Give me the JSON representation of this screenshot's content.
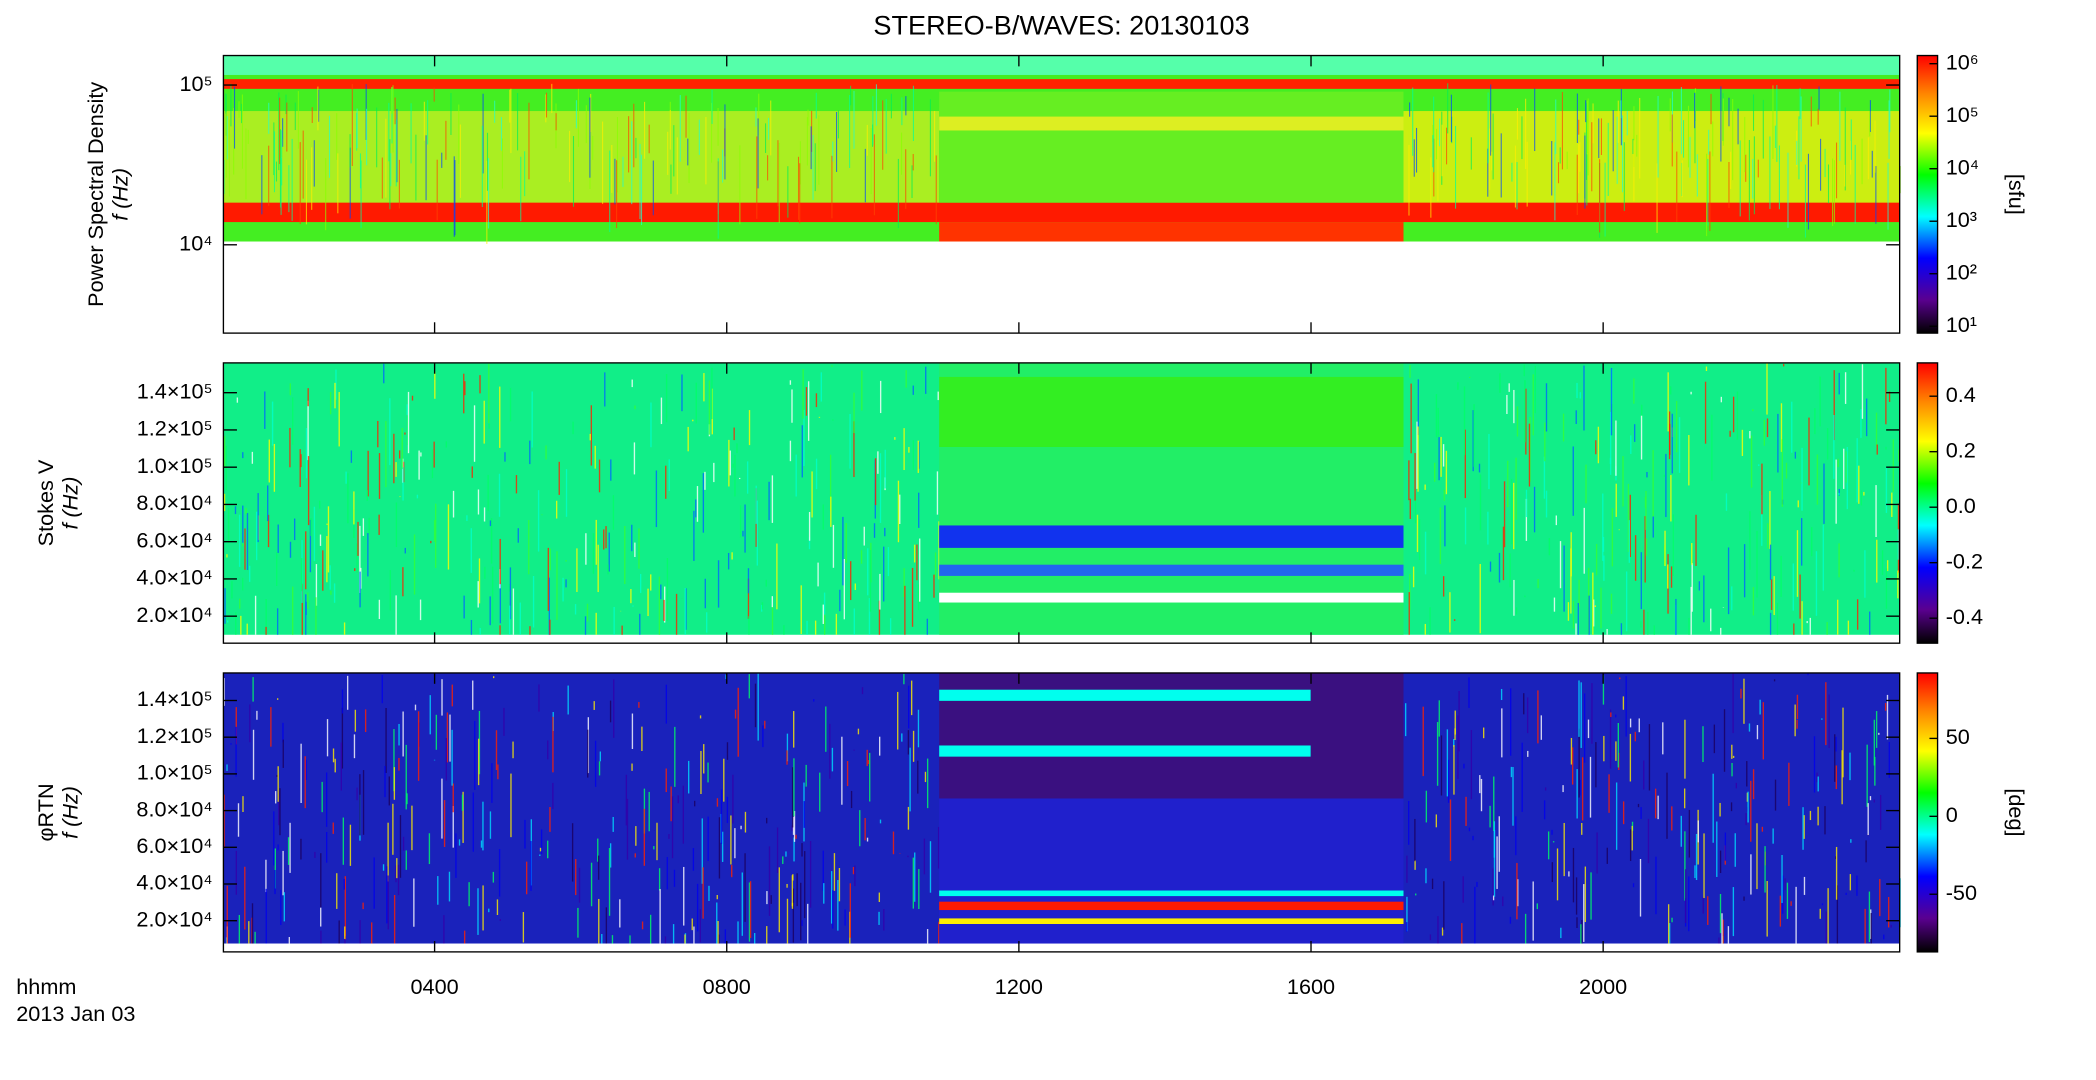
{
  "chart_data": [
    {
      "type": "spectrogram",
      "title": "STEREO-B/WAVES: 20130103",
      "ylabel": "Power Spectral Density",
      "ylabel2": "f (Hz)",
      "ylog": true,
      "ylim": [
        2800,
        153000
      ],
      "yticks": [
        {
          "value": 10000,
          "label": "10⁴"
        },
        {
          "value": 100000,
          "label": "10⁵"
        }
      ],
      "zlog": true,
      "zlim": [
        7.4,
        1430000
      ],
      "zlabel": "[sfu]",
      "zticks": [
        {
          "value": 10,
          "label": "10¹"
        },
        {
          "value": 100,
          "label": "10²"
        },
        {
          "value": 1000,
          "label": "10³"
        },
        {
          "value": 10000,
          "label": "10⁴"
        },
        {
          "value": 100000,
          "label": "10⁵"
        },
        {
          "value": 1000000,
          "label": "10⁶"
        }
      ]
    },
    {
      "type": "spectrogram",
      "ylabel": "Stokes V",
      "ylabel2": "f (Hz)",
      "ylog": false,
      "ylim": [
        5500,
        156000
      ],
      "yticks": [
        {
          "value": 20000,
          "label": "2.0×10⁴"
        },
        {
          "value": 40000,
          "label": "4.0×10⁴"
        },
        {
          "value": 60000,
          "label": "6.0×10⁴"
        },
        {
          "value": 80000,
          "label": "8.0×10⁴"
        },
        {
          "value": 100000,
          "label": "1.0×10⁵"
        },
        {
          "value": 120000,
          "label": "1.2×10⁵"
        },
        {
          "value": 140000,
          "label": "1.4×10⁵"
        }
      ],
      "zlog": false,
      "zlim": [
        -0.49,
        0.52
      ],
      "zticks": [
        -0.4,
        -0.2,
        {
          "value": 0,
          "label": "0.0"
        },
        0.2,
        0.4
      ]
    },
    {
      "type": "spectrogram",
      "ylabel": "φRTN",
      "ylabel2": "f (Hz)",
      "ylog": false,
      "ylim": [
        3000,
        155000
      ],
      "yticks": [
        {
          "value": 20000,
          "label": "2.0×10⁴"
        },
        {
          "value": 40000,
          "label": "4.0×10⁴"
        },
        {
          "value": 60000,
          "label": "6.0×10⁴"
        },
        {
          "value": 80000,
          "label": "8.0×10⁴"
        },
        {
          "value": 100000,
          "label": "1.0×10⁵"
        },
        {
          "value": 120000,
          "label": "1.2×10⁵"
        },
        {
          "value": 140000,
          "label": "1.4×10⁵"
        }
      ],
      "zlog": false,
      "zlim": [
        -87,
        92
      ],
      "zlabel": "[deg]",
      "zticks": [
        -50,
        0,
        50
      ],
      "xlabel": "hhmm",
      "xlabel2": "2013 Jan 03",
      "xlim": [
        66.5,
        1443.6
      ],
      "xticks": [
        {
          "value": 240,
          "label": "0400"
        },
        {
          "value": 480,
          "label": "0800"
        },
        {
          "value": 720,
          "label": "1200"
        },
        {
          "value": 960,
          "label": "1600"
        },
        {
          "value": 1200,
          "label": "2000"
        }
      ]
    }
  ]
}
